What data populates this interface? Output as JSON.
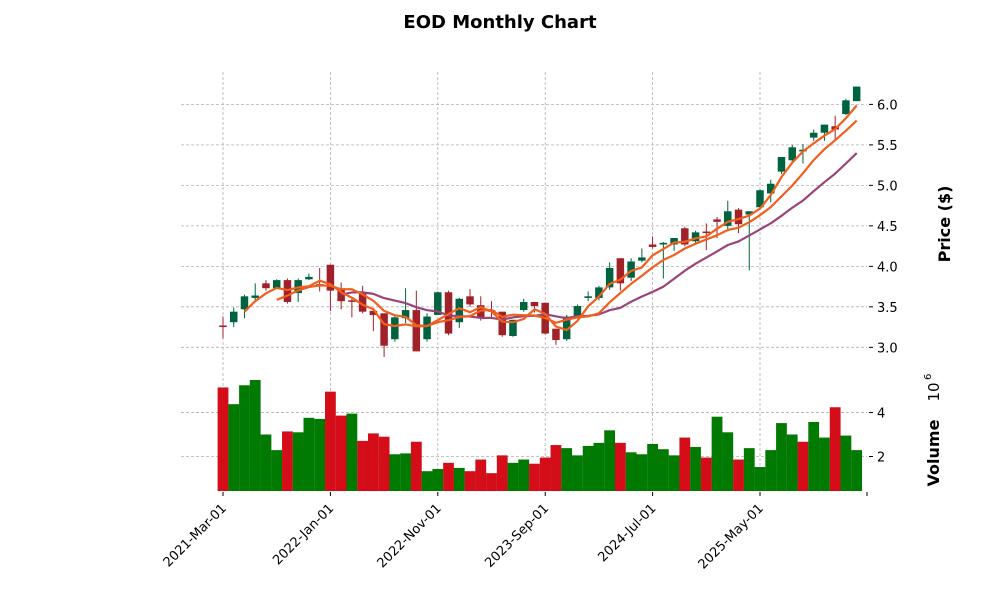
{
  "chart_data": {
    "type": "candlestick",
    "title": "EOD Monthly Chart",
    "price_axis": {
      "label": "Price ($)",
      "ticks": [
        3.0,
        3.5,
        4.0,
        4.5,
        5.0,
        5.5,
        6.0
      ],
      "tick_labels": [
        "3.0",
        "3.5",
        "4.0",
        "4.5",
        "5.0",
        "5.5",
        "6.0"
      ],
      "ylim": [
        2.72,
        6.4
      ],
      "position": "right",
      "grid": true
    },
    "volume_axis": {
      "label": "Volume",
      "multiplier_label": "10",
      "multiplier_exponent": "6",
      "ticks": [
        2,
        4
      ],
      "tick_labels": [
        "2",
        "4"
      ],
      "ylim": [
        0.43,
        5.8
      ],
      "position": "right",
      "grid": true
    },
    "x_axis": {
      "tick_indices": [
        0,
        10,
        20,
        30,
        40,
        50
      ],
      "tick_labels": [
        "2021-Mar-01",
        "2022-Jan-01",
        "2022-Nov-01",
        "2023-Sep-01",
        "2024-Jul-01",
        "2025-May-01"
      ],
      "grid": true
    },
    "colors": {
      "up_candle": "#006340",
      "down_candle": "#a02128",
      "up_volume": "#007a00",
      "down_volume": "#d50d18",
      "ma_short": "#f05f1d",
      "ma_mid": "#f05f1d",
      "ma_long": "#9b4478"
    },
    "moving_averages": [
      {
        "name": "MA3",
        "period": 3,
        "color_key": "ma_short"
      },
      {
        "name": "MA6",
        "period": 6,
        "color_key": "ma_mid"
      },
      {
        "name": "MA12",
        "period": 12,
        "color_key": "ma_long"
      }
    ],
    "ohlc": [
      [
        3.27,
        3.38,
        3.11,
        3.25
      ],
      [
        3.31,
        3.49,
        3.25,
        3.44
      ],
      [
        3.47,
        3.65,
        3.36,
        3.63
      ],
      [
        3.61,
        3.79,
        3.57,
        3.64
      ],
      [
        3.79,
        3.83,
        3.7,
        3.73
      ],
      [
        3.73,
        3.84,
        3.72,
        3.83
      ],
      [
        3.83,
        3.85,
        3.54,
        3.56
      ],
      [
        3.67,
        3.85,
        3.56,
        3.83
      ],
      [
        3.84,
        3.91,
        3.83,
        3.87
      ],
      [
        3.78,
        3.98,
        3.69,
        3.77
      ],
      [
        4.02,
        4.02,
        3.45,
        3.7
      ],
      [
        3.73,
        3.8,
        3.47,
        3.57
      ],
      [
        3.58,
        3.62,
        3.37,
        3.57
      ],
      [
        3.68,
        3.76,
        3.42,
        3.44
      ],
      [
        3.45,
        3.45,
        3.2,
        3.4
      ],
      [
        3.42,
        3.42,
        2.88,
        3.02
      ],
      [
        3.1,
        3.4,
        3.07,
        3.37
      ],
      [
        3.36,
        3.73,
        3.3,
        3.46
      ],
      [
        3.46,
        3.7,
        2.95,
        2.95
      ],
      [
        3.1,
        3.42,
        3.07,
        3.38
      ],
      [
        3.4,
        3.69,
        3.4,
        3.68
      ],
      [
        3.68,
        3.7,
        3.15,
        3.17
      ],
      [
        3.31,
        3.61,
        3.24,
        3.6
      ],
      [
        3.63,
        3.72,
        3.5,
        3.53
      ],
      [
        3.52,
        3.63,
        3.33,
        3.36
      ],
      [
        3.46,
        3.57,
        3.36,
        3.44
      ],
      [
        3.44,
        3.44,
        3.13,
        3.15
      ],
      [
        3.14,
        3.34,
        3.13,
        3.34
      ],
      [
        3.46,
        3.6,
        3.44,
        3.56
      ],
      [
        3.56,
        3.56,
        3.43,
        3.51
      ],
      [
        3.55,
        3.55,
        3.16,
        3.17
      ],
      [
        3.23,
        3.23,
        3.03,
        3.09
      ],
      [
        3.1,
        3.4,
        3.08,
        3.38
      ],
      [
        3.38,
        3.53,
        3.37,
        3.51
      ],
      [
        3.61,
        3.69,
        3.57,
        3.63
      ],
      [
        3.61,
        3.76,
        3.58,
        3.74
      ],
      [
        3.74,
        4.05,
        3.71,
        3.98
      ],
      [
        4.1,
        4.1,
        3.7,
        3.79
      ],
      [
        3.86,
        4.1,
        3.82,
        4.06
      ],
      [
        4.07,
        4.22,
        4.05,
        4.11
      ],
      [
        4.27,
        4.37,
        4.22,
        4.24
      ],
      [
        4.27,
        4.3,
        3.85,
        4.29
      ],
      [
        4.27,
        4.35,
        4.19,
        4.35
      ],
      [
        4.47,
        4.49,
        4.25,
        4.27
      ],
      [
        4.31,
        4.44,
        4.28,
        4.42
      ],
      [
        4.43,
        4.53,
        4.2,
        4.42
      ],
      [
        4.58,
        4.61,
        4.35,
        4.55
      ],
      [
        4.5,
        4.81,
        4.44,
        4.68
      ],
      [
        4.7,
        4.72,
        4.41,
        4.52
      ],
      [
        4.64,
        4.68,
        3.95,
        4.68
      ],
      [
        4.73,
        4.95,
        4.71,
        4.94
      ],
      [
        4.9,
        5.07,
        4.79,
        5.02
      ],
      [
        5.17,
        5.35,
        5.14,
        5.35
      ],
      [
        5.31,
        5.5,
        5.27,
        5.47
      ],
      [
        5.42,
        5.51,
        5.27,
        5.44
      ],
      [
        5.59,
        5.69,
        5.55,
        5.65
      ],
      [
        5.65,
        5.75,
        5.55,
        5.75
      ],
      [
        5.73,
        5.86,
        5.57,
        5.69
      ],
      [
        5.88,
        6.07,
        5.87,
        6.05
      ],
      [
        6.04,
        6.22,
        6.04,
        6.22
      ]
    ],
    "volume_millions": [
      5.14,
      4.38,
      5.24,
      5.48,
      3.0,
      2.29,
      3.14,
      3.1,
      3.76,
      3.71,
      4.95,
      3.86,
      3.95,
      2.71,
      3.05,
      2.9,
      2.1,
      2.14,
      2.67,
      1.33,
      1.43,
      1.71,
      1.48,
      1.33,
      1.86,
      1.24,
      2.05,
      1.71,
      1.86,
      1.67,
      1.95,
      2.52,
      2.38,
      2.05,
      2.48,
      2.62,
      3.19,
      2.62,
      2.19,
      2.1,
      2.57,
      2.33,
      2.05,
      2.86,
      2.43,
      1.95,
      3.81,
      3.1,
      1.86,
      2.38,
      1.52,
      2.29,
      3.52,
      3.0,
      2.67,
      3.57,
      2.86,
      4.24,
      2.95,
      2.29
    ],
    "volume_direction": [
      "down",
      "up",
      "up",
      "up",
      "up",
      "up",
      "down",
      "up",
      "up",
      "up",
      "down",
      "down",
      "up",
      "down",
      "down",
      "down",
      "up",
      "up",
      "down",
      "up",
      "up",
      "down",
      "up",
      "down",
      "down",
      "down",
      "down",
      "up",
      "up",
      "down",
      "down",
      "down",
      "up",
      "up",
      "up",
      "up",
      "up",
      "down",
      "up",
      "up",
      "up",
      "up",
      "up",
      "down",
      "up",
      "down",
      "up",
      "up",
      "down",
      "up",
      "up",
      "up",
      "up",
      "up",
      "down",
      "up",
      "up",
      "down",
      "up",
      "up"
    ]
  }
}
